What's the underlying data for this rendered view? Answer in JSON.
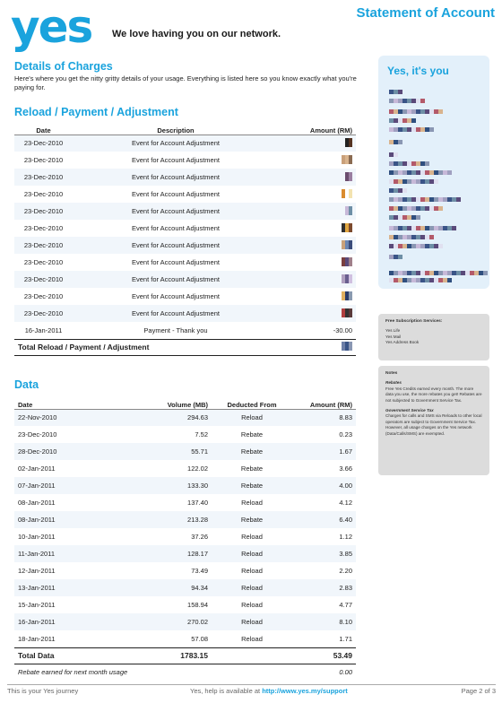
{
  "header": {
    "logo": "yes",
    "tagline": "We love having you on our network.",
    "title": "Statement of Account"
  },
  "details": {
    "title": "Details of Charges",
    "intro": "Here's where you get the nitty gritty details of your usage. Everything is listed here so you know exactly what you're paying for."
  },
  "reload": {
    "title": "Reload / Payment / Adjustment",
    "headers": [
      "Date",
      "Description",
      "Amount (RM)"
    ],
    "rows": [
      {
        "date": "23-Dec-2010",
        "desc": "Event for Account Adjustment",
        "amount": ""
      },
      {
        "date": "23-Dec-2010",
        "desc": "Event for Account Adjustment",
        "amount": ""
      },
      {
        "date": "23-Dec-2010",
        "desc": "Event for Account Adjustment",
        "amount": ""
      },
      {
        "date": "23-Dec-2010",
        "desc": "Event for Account Adjustment",
        "amount": ""
      },
      {
        "date": "23-Dec-2010",
        "desc": "Event for Account Adjustment",
        "amount": ""
      },
      {
        "date": "23-Dec-2010",
        "desc": "Event for Account Adjustment",
        "amount": ""
      },
      {
        "date": "23-Dec-2010",
        "desc": "Event for Account Adjustment",
        "amount": ""
      },
      {
        "date": "23-Dec-2010",
        "desc": "Event for Account Adjustment",
        "amount": ""
      },
      {
        "date": "23-Dec-2010",
        "desc": "Event for Account Adjustment",
        "amount": ""
      },
      {
        "date": "23-Dec-2010",
        "desc": "Event for Account Adjustment",
        "amount": ""
      },
      {
        "date": "23-Dec-2010",
        "desc": "Event for Account Adjustment",
        "amount": ""
      },
      {
        "date": "16-Jan-2011",
        "desc": "Payment - Thank you",
        "amount": "-30.00"
      }
    ],
    "total_label": "Total Reload / Payment / Adjustment"
  },
  "data_usage": {
    "title": "Data",
    "headers": [
      "Date",
      "Volume (MB)",
      "Deducted From",
      "Amount (RM)"
    ],
    "rows": [
      {
        "date": "22-Nov-2010",
        "volume": "294.63",
        "from": "Reload",
        "amount": "8.83"
      },
      {
        "date": "23-Dec-2010",
        "volume": "7.52",
        "from": "Rebate",
        "amount": "0.23"
      },
      {
        "date": "28-Dec-2010",
        "volume": "55.71",
        "from": "Rebate",
        "amount": "1.67"
      },
      {
        "date": "02-Jan-2011",
        "volume": "122.02",
        "from": "Rebate",
        "amount": "3.66"
      },
      {
        "date": "07-Jan-2011",
        "volume": "133.30",
        "from": "Rebate",
        "amount": "4.00"
      },
      {
        "date": "08-Jan-2011",
        "volume": "137.40",
        "from": "Reload",
        "amount": "4.12"
      },
      {
        "date": "08-Jan-2011",
        "volume": "213.28",
        "from": "Rebate",
        "amount": "6.40"
      },
      {
        "date": "10-Jan-2011",
        "volume": "37.26",
        "from": "Reload",
        "amount": "1.12"
      },
      {
        "date": "11-Jan-2011",
        "volume": "128.17",
        "from": "Reload",
        "amount": "3.85"
      },
      {
        "date": "12-Jan-2011",
        "volume": "73.49",
        "from": "Reload",
        "amount": "2.20"
      },
      {
        "date": "13-Jan-2011",
        "volume": "94.34",
        "from": "Reload",
        "amount": "2.83"
      },
      {
        "date": "15-Jan-2011",
        "volume": "158.94",
        "from": "Reload",
        "amount": "4.77"
      },
      {
        "date": "16-Jan-2011",
        "volume": "270.02",
        "from": "Reload",
        "amount": "8.10"
      },
      {
        "date": "18-Jan-2011",
        "volume": "57.08",
        "from": "Reload",
        "amount": "1.71"
      }
    ],
    "total": {
      "label": "Total Data",
      "volume": "1783.15",
      "amount": "53.49"
    },
    "rebate": {
      "label": "Rebate earned for next month usage",
      "amount": "0.00"
    }
  },
  "sidebar": {
    "title": "Yes, it's you"
  },
  "subscriptions": {
    "title": "Free Subscription Services:",
    "items": [
      "Yes Life",
      "Yes Mail",
      "Yes Address Book"
    ]
  },
  "notes": {
    "title": "Notes",
    "rebates_title": "Rebates",
    "rebates_text": "Free Yes Credits earned every month. The more data you use, the more rebates you get! Rebates are not subjected to Government Service Tax.",
    "gst_title": "Government Service Tax",
    "gst_text": "Charges for calls and SMS via Reloads to other local operators are subject to Government Service Tax. However, all usage charges on the Yes network (Data/Calls/SMS) are exempted."
  },
  "footer": {
    "left": "This is your Yes journey",
    "help": "Yes, help is available at",
    "link": "http://www.yes.my/support",
    "page": "Page 2 of 3"
  }
}
